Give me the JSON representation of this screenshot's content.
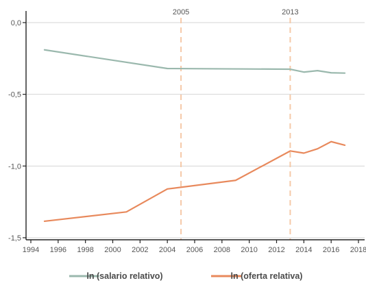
{
  "chart_data": {
    "type": "line",
    "title": "",
    "xlabel": "",
    "ylabel": "",
    "xlim": [
      1994,
      2018
    ],
    "ylim": [
      -1.5,
      0.0
    ],
    "x_ticks": [
      1994,
      1996,
      1998,
      2000,
      2002,
      2004,
      2006,
      2008,
      2010,
      2012,
      2014,
      2016,
      2018
    ],
    "y_ticks": [
      {
        "value": 0.0,
        "label": "0,0"
      },
      {
        "value": -0.5,
        "label": "-0,5"
      },
      {
        "value": -1.0,
        "label": "-1,0"
      },
      {
        "value": -1.5,
        "label": "-1,5"
      }
    ],
    "grid": "horizontal",
    "legend_position": "bottom",
    "reference_lines": [
      {
        "x": 2005,
        "label": "2005",
        "color": "#f5c9a8"
      },
      {
        "x": 2013,
        "label": "2013",
        "color": "#f5c9a8"
      }
    ],
    "series": [
      {
        "name": "ln (salario relativo)",
        "color": "#9ab8ad",
        "points": [
          {
            "x": 1995,
            "y": -0.19
          },
          {
            "x": 2004,
            "y": -0.32
          },
          {
            "x": 2013,
            "y": -0.325
          },
          {
            "x": 2014,
            "y": -0.345
          },
          {
            "x": 2015,
            "y": -0.335
          },
          {
            "x": 2016,
            "y": -0.35
          },
          {
            "x": 2017,
            "y": -0.352
          }
        ]
      },
      {
        "name": "ln (oferta relativa)",
        "color": "#e8895c",
        "points": [
          {
            "x": 1995,
            "y": -1.385
          },
          {
            "x": 2001,
            "y": -1.32
          },
          {
            "x": 2004,
            "y": -1.16
          },
          {
            "x": 2009,
            "y": -1.1
          },
          {
            "x": 2013,
            "y": -0.895
          },
          {
            "x": 2014,
            "y": -0.91
          },
          {
            "x": 2015,
            "y": -0.88
          },
          {
            "x": 2016,
            "y": -0.83
          },
          {
            "x": 2017,
            "y": -0.855
          }
        ]
      }
    ]
  }
}
